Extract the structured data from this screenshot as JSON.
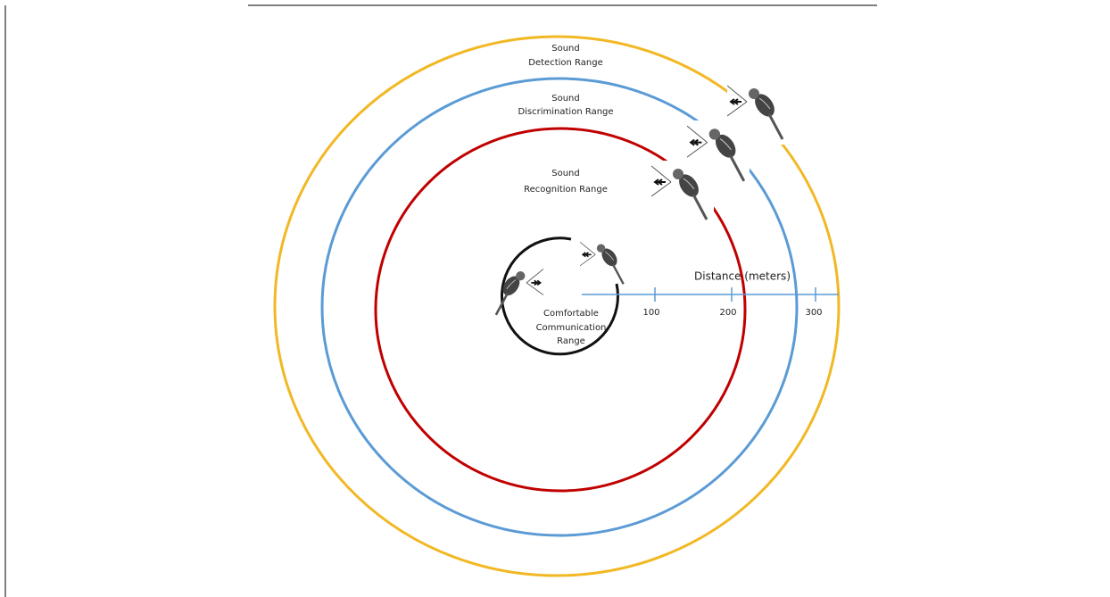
{
  "ranges": [
    {
      "lines": [
        "Sound",
        "Detection Range"
      ]
    },
    {
      "lines": [
        "Sound",
        "Discrimination Range"
      ]
    },
    {
      "lines": [
        "Sound",
        "Recognition Range"
      ]
    },
    {
      "lines": [
        "Comfortable",
        "Communication",
        "Range"
      ]
    }
  ],
  "axis": {
    "title": "Distance (meters)",
    "ticks": [
      "100",
      "200",
      "300"
    ]
  }
}
